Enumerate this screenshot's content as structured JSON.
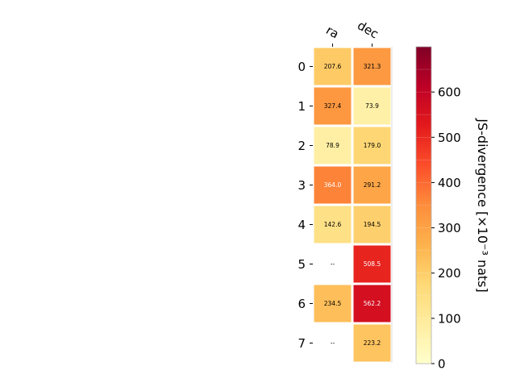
{
  "chart_data": {
    "type": "heatmap",
    "columns": [
      "ra",
      "dec"
    ],
    "rows": [
      "0",
      "1",
      "2",
      "3",
      "4",
      "5",
      "6",
      "7"
    ],
    "values": [
      [
        207.6,
        321.3
      ],
      [
        327.4,
        73.9
      ],
      [
        78.9,
        179.0
      ],
      [
        364.0,
        291.2
      ],
      [
        142.6,
        194.5
      ],
      [
        null,
        508.5
      ],
      [
        234.5,
        562.2
      ],
      [
        null,
        223.2
      ]
    ],
    "cell_labels": [
      [
        "207.6",
        "321.3"
      ],
      [
        "327.4",
        "73.9"
      ],
      [
        "78.9",
        "179.0"
      ],
      [
        "364.0",
        "291.2"
      ],
      [
        "142.6",
        "194.5"
      ],
      [
        "--",
        "508.5"
      ],
      [
        "234.5",
        "562.2"
      ],
      [
        "--",
        "223.2"
      ]
    ],
    "colorbar": {
      "label": "JS-divergence [×10⁻³ nats]",
      "range": [
        0,
        700
      ],
      "ticks": [
        "0",
        "100",
        "200",
        "300",
        "400",
        "500",
        "600"
      ],
      "colormap": "YlOrRd",
      "colors": [
        "#ffffcc",
        "#ffeda0",
        "#fed976",
        "#feb24c",
        "#fd8d3c",
        "#fc4e2a",
        "#e31a1c",
        "#bd0026",
        "#800026"
      ]
    }
  }
}
